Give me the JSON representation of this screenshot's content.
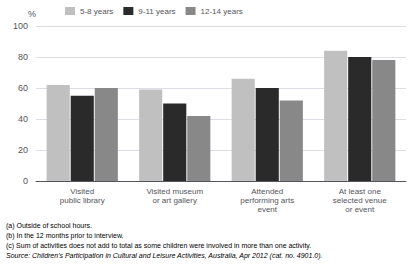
{
  "chart_data": {
    "type": "bar",
    "categories": [
      "Visited\npublic library",
      "Visited museum\nor art gallery",
      "Attended\nperforming arts\nevent",
      "At least one\nselected venue\nor event"
    ],
    "series": [
      {
        "name": "5-8 years",
        "color": "#c0c0c0",
        "values": [
          62,
          59,
          66,
          84
        ]
      },
      {
        "name": "9-11 years",
        "color": "#2a2a2a",
        "values": [
          55,
          50,
          60,
          80
        ]
      },
      {
        "name": "12-14 years",
        "color": "#888888",
        "values": [
          60,
          42,
          52,
          78
        ]
      }
    ],
    "ylabel": "%",
    "ylim": [
      0,
      100
    ],
    "yticks": [
      0,
      20,
      40,
      60,
      80,
      100
    ],
    "grid": true,
    "legend": "upper left",
    "annotations": [
      "(a) Outside of school hours.",
      "(b) In the 12 months prior to interview.",
      "(c) Sum of activities does not add to total as some children were involved in more than one activity.",
      "Source: Children's Participation in Cultural and Leisure Activities, Australia, Apr 2012 (cat. no. 4901.0)."
    ]
  }
}
